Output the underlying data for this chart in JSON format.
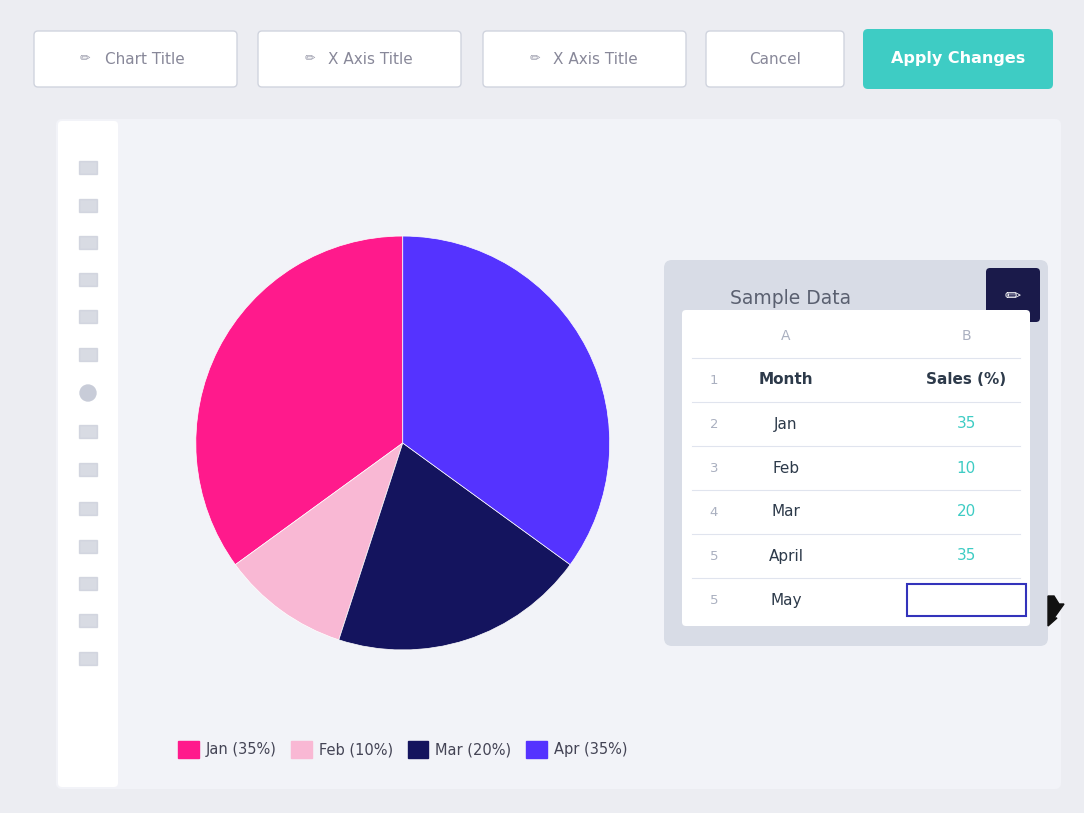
{
  "bg_color": "#ecedf2",
  "main_bg": "#f2f3f8",
  "sidebar_bg": "#ffffff",
  "pie_values": [
    35,
    10,
    20,
    35
  ],
  "pie_colors": [
    "#ff1a8c",
    "#f9b8d4",
    "#14145e",
    "#5533ff"
  ],
  "legend_labels": [
    "Jan (35%)",
    "Feb (10%)",
    "Mar (20%)",
    "Apr (35%)"
  ],
  "legend_colors": [
    "#ff1a8c",
    "#f9b8d4",
    "#14145e",
    "#5533ff"
  ],
  "pie_startangle": 90,
  "toolbar_bg": "#ffffff",
  "toolbar_labels": [
    "Chart Title",
    "X Axis Title",
    "X Axis Title"
  ],
  "cancel_bg": "#ffffff",
  "cancel_text": "Cancel",
  "apply_bg": "#3eccc4",
  "apply_text": "Apply Changes",
  "panel_bg": "#d8dce6",
  "table_bg": "#ffffff",
  "table_header": "Sample Data",
  "edit_btn_color": "#1a1a4a",
  "col_a": "A",
  "col_b": "B",
  "col_header_color": "#aab0c0",
  "row_header": [
    "Month",
    "Sales (%)"
  ],
  "row_header_color": "#2d3a4a",
  "table_rows": [
    [
      "Jan",
      "35"
    ],
    [
      "Feb",
      "10"
    ],
    [
      "Mar",
      "20"
    ],
    [
      "April",
      "35"
    ],
    [
      "May",
      ""
    ]
  ],
  "row_nums": [
    "2",
    "3",
    "4",
    "5",
    "5"
  ],
  "data_color": "#3eccc4",
  "row_num_color": "#aab0c0",
  "month_color": "#2d3a4a",
  "divider_color": "#e0e4ee",
  "empty_cell_border": "#3333bb",
  "cursor_color": "#111111",
  "sidebar_icon_color": "#c8ccd8"
}
